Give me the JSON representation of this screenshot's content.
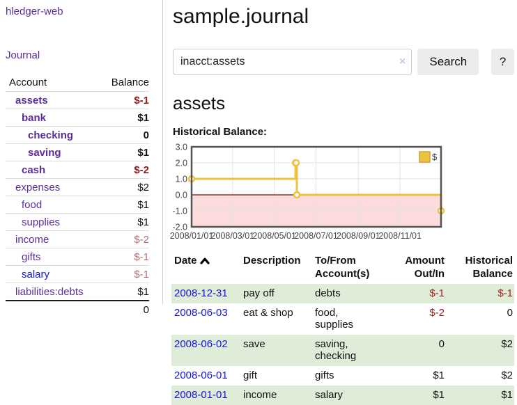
{
  "app": {
    "title": "hledger-web"
  },
  "sidebar": {
    "journal_link": "Journal",
    "header": {
      "account": "Account",
      "balance": "Balance"
    },
    "accounts": [
      {
        "name": "assets",
        "balance": "$-1",
        "depth": 1,
        "bold": true,
        "link_color": "purple",
        "balance_color": "neg-strong"
      },
      {
        "name": "bank",
        "balance": "$1",
        "depth": 2,
        "bold": true,
        "link_color": "purple",
        "balance_color": "pos"
      },
      {
        "name": "checking",
        "balance": "0",
        "depth": 3,
        "bold": true,
        "link_color": "purple",
        "balance_color": "pos"
      },
      {
        "name": "saving",
        "balance": "$1",
        "depth": 3,
        "bold": true,
        "link_color": "purple",
        "balance_color": "pos"
      },
      {
        "name": "cash",
        "balance": "$-2",
        "depth": 2,
        "bold": true,
        "link_color": "purple",
        "balance_color": "neg-strong"
      },
      {
        "name": "expenses",
        "balance": "$2",
        "depth": 1,
        "bold": false,
        "link_color": "purple",
        "balance_color": "pos"
      },
      {
        "name": "food",
        "balance": "$1",
        "depth": 2,
        "bold": false,
        "link_color": "purple",
        "balance_color": "pos"
      },
      {
        "name": "supplies",
        "balance": "$1",
        "depth": 2,
        "bold": false,
        "link_color": "purple",
        "balance_color": "pos"
      },
      {
        "name": "income",
        "balance": "$-2",
        "depth": 1,
        "bold": false,
        "link_color": "purple",
        "balance_color": "neg-soft"
      },
      {
        "name": "gifts",
        "balance": "$-1",
        "depth": 2,
        "bold": false,
        "link_color": "purple",
        "balance_color": "neg-soft"
      },
      {
        "name": "salary",
        "balance": "$-1",
        "depth": 2,
        "bold": false,
        "link_color": "blue",
        "balance_color": "neg-soft"
      },
      {
        "name": "liabilities:debts",
        "balance": "$1",
        "depth": 1,
        "bold": false,
        "link_color": "purple",
        "balance_color": "pos"
      }
    ],
    "total": "0"
  },
  "main": {
    "title": "sample.journal",
    "search": {
      "value": "inacct:assets",
      "clear_icon": "×",
      "button_label": "Search",
      "help_label": "?"
    },
    "account_heading": "assets",
    "chart_label": "Historical Balance:"
  },
  "chart_data": {
    "type": "line",
    "title": "Historical Balance:",
    "step": true,
    "series": [
      {
        "name": "$",
        "points": [
          [
            "2008-01-01",
            1
          ],
          [
            "2008-06-01",
            2
          ],
          [
            "2008-06-02",
            2
          ],
          [
            "2008-06-03",
            0
          ],
          [
            "2008-12-31",
            -1
          ]
        ]
      }
    ],
    "xlim": [
      "2008-01-01",
      "2008-12-31"
    ],
    "ylim": [
      -2,
      3
    ],
    "y_ticks": [
      3.0,
      2.0,
      1.0,
      0.0,
      -1.0,
      -2.0
    ],
    "x_ticks": [
      {
        "date": "2008-01-01",
        "label": "2008/01/01"
      },
      {
        "date": "2008-03-01",
        "label": "2008/03/01"
      },
      {
        "date": "2008-05-01",
        "label": "2008/05/01"
      },
      {
        "date": "2008-07-01",
        "label": "2008/07/01"
      },
      {
        "date": "2008-09-01",
        "label": "2008/09/01"
      },
      {
        "date": "2008-11-01",
        "label": "2008/11/01"
      }
    ],
    "grid": true,
    "legend_position": "top-right",
    "line_color": "#edc240",
    "legend_box_border": "#c9a42f",
    "negative_fill": "#fbdbdb",
    "zero_line_color": "#8b0000",
    "grid_color": "#e3e3e3",
    "border_color": "#545454"
  },
  "transactions": {
    "columns": [
      "Date",
      "Description",
      "To/From Account(s)",
      "Amount Out/In",
      "Historical Balance"
    ],
    "sort": "ascending-on-date",
    "rows": [
      {
        "date": "2008-12-31",
        "description": "pay off",
        "accounts": "debts",
        "amount": "$-1",
        "amount_negative": true,
        "balance": "$-1",
        "balance_negative": true
      },
      {
        "date": "2008-06-03",
        "description": "eat & shop",
        "accounts": "food, supplies",
        "amount": "$-2",
        "amount_negative": true,
        "balance": "0",
        "balance_negative": false
      },
      {
        "date": "2008-06-02",
        "description": "save",
        "accounts": "saving, checking",
        "amount": "0",
        "amount_negative": false,
        "balance": "$2",
        "balance_negative": false
      },
      {
        "date": "2008-06-01",
        "description": "gift",
        "accounts": "gifts",
        "amount": "$1",
        "amount_negative": false,
        "balance": "$2",
        "balance_negative": false
      },
      {
        "date": "2008-01-01",
        "description": "income",
        "accounts": "salary",
        "amount": "$1",
        "amount_negative": false,
        "balance": "$1",
        "balance_negative": false
      }
    ]
  }
}
